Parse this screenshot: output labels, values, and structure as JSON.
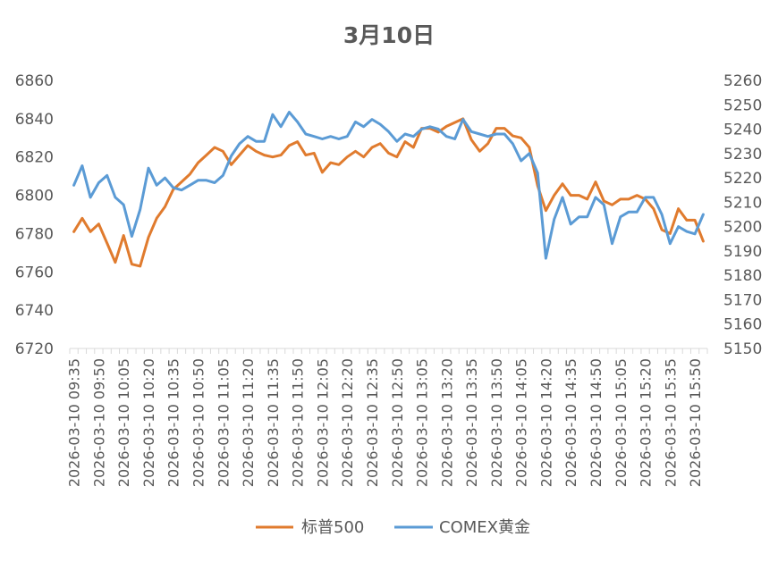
{
  "chart_data": {
    "type": "line",
    "title": "3月10日",
    "x": [
      "2026-03-10 09:35",
      "2026-03-10 09:40",
      "2026-03-10 09:45",
      "2026-03-10 09:50",
      "2026-03-10 09:55",
      "2026-03-10 10:00",
      "2026-03-10 10:05",
      "2026-03-10 10:10",
      "2026-03-10 10:15",
      "2026-03-10 10:20",
      "2026-03-10 10:25",
      "2026-03-10 10:30",
      "2026-03-10 10:35",
      "2026-03-10 10:40",
      "2026-03-10 10:45",
      "2026-03-10 10:50",
      "2026-03-10 10:55",
      "2026-03-10 11:00",
      "2026-03-10 11:05",
      "2026-03-10 11:10",
      "2026-03-10 11:15",
      "2026-03-10 11:20",
      "2026-03-10 11:25",
      "2026-03-10 11:30",
      "2026-03-10 11:35",
      "2026-03-10 11:40",
      "2026-03-10 11:45",
      "2026-03-10 11:50",
      "2026-03-10 11:55",
      "2026-03-10 12:00",
      "2026-03-10 12:05",
      "2026-03-10 12:10",
      "2026-03-10 12:15",
      "2026-03-10 12:20",
      "2026-03-10 12:25",
      "2026-03-10 12:30",
      "2026-03-10 12:35",
      "2026-03-10 12:40",
      "2026-03-10 12:45",
      "2026-03-10 12:50",
      "2026-03-10 12:55",
      "2026-03-10 13:00",
      "2026-03-10 13:05",
      "2026-03-10 13:10",
      "2026-03-10 13:15",
      "2026-03-10 13:20",
      "2026-03-10 13:25",
      "2026-03-10 13:30",
      "2026-03-10 13:35",
      "2026-03-10 13:40",
      "2026-03-10 13:45",
      "2026-03-10 13:50",
      "2026-03-10 13:55",
      "2026-03-10 14:00",
      "2026-03-10 14:05",
      "2026-03-10 14:10",
      "2026-03-10 14:15",
      "2026-03-10 14:20",
      "2026-03-10 14:25",
      "2026-03-10 14:30",
      "2026-03-10 14:35",
      "2026-03-10 14:40",
      "2026-03-10 14:45",
      "2026-03-10 14:50",
      "2026-03-10 14:55",
      "2026-03-10 15:00",
      "2026-03-10 15:05",
      "2026-03-10 15:10",
      "2026-03-10 15:15",
      "2026-03-10 15:20",
      "2026-03-10 15:25",
      "2026-03-10 15:30",
      "2026-03-10 15:35",
      "2026-03-10 15:40",
      "2026-03-10 15:45",
      "2026-03-10 15:50",
      "2026-03-10 15:55"
    ],
    "x_tick_labels": [
      "2026-03-10 09:35",
      "2026-03-10 09:50",
      "2026-03-10 10:05",
      "2026-03-10 10:20",
      "2026-03-10 10:35",
      "2026-03-10 10:50",
      "2026-03-10 11:05",
      "2026-03-10 11:20",
      "2026-03-10 11:35",
      "2026-03-10 11:50",
      "2026-03-10 12:05",
      "2026-03-10 12:20",
      "2026-03-10 12:35",
      "2026-03-10 12:50",
      "2026-03-10 13:05",
      "2026-03-10 13:20",
      "2026-03-10 13:35",
      "2026-03-10 13:50",
      "2026-03-10 14:05",
      "2026-03-10 14:20",
      "2026-03-10 14:35",
      "2026-03-10 14:50",
      "2026-03-10 15:05",
      "2026-03-10 15:20",
      "2026-03-10 15:35",
      "2026-03-10 15:50"
    ],
    "y_left": {
      "ylim": [
        6720,
        6860
      ],
      "ticks": [
        6720,
        6740,
        6760,
        6780,
        6800,
        6820,
        6840,
        6860
      ]
    },
    "y_right": {
      "ylim": [
        5150,
        5260
      ],
      "ticks": [
        5150,
        5160,
        5170,
        5180,
        5190,
        5200,
        5210,
        5220,
        5230,
        5240,
        5250,
        5260
      ]
    },
    "grid": false,
    "legend_position": "bottom",
    "series": [
      {
        "name": "标普500",
        "axis": "left",
        "color": "#E07B2E",
        "values": [
          6781,
          6788,
          6781,
          6785,
          6775,
          6765,
          6779,
          6764,
          6763,
          6778,
          6788,
          6794,
          6803,
          6807,
          6811,
          6817,
          6821,
          6825,
          6823,
          6816,
          6821,
          6826,
          6823,
          6821,
          6820,
          6821,
          6826,
          6828,
          6821,
          6822,
          6812,
          6817,
          6816,
          6820,
          6823,
          6820,
          6825,
          6827,
          6822,
          6820,
          6828,
          6825,
          6835,
          6835,
          6833,
          6836,
          6838,
          6840,
          6829,
          6823,
          6827,
          6835,
          6835,
          6831,
          6830,
          6825,
          6805,
          6792,
          6800,
          6806,
          6800,
          6800,
          6798,
          6807,
          6797,
          6795,
          6798,
          6798,
          6800,
          6798,
          6793,
          6782,
          6780,
          6793,
          6787,
          6787,
          6776
        ]
      },
      {
        "name": "COMEX黄金",
        "axis": "right",
        "color": "#5B9BD5",
        "values": [
          5217,
          5225,
          5212,
          5218,
          5221,
          5212,
          5209,
          5196,
          5207,
          5224,
          5217,
          5220,
          5216,
          5215,
          5217,
          5219,
          5219,
          5218,
          5221,
          5229,
          5234,
          5237,
          5235,
          5235,
          5246,
          5241,
          5247,
          5243,
          5238,
          5237,
          5236,
          5237,
          5236,
          5237,
          5243,
          5241,
          5244,
          5242,
          5239,
          5235,
          5238,
          5237,
          5240,
          5241,
          5240,
          5237,
          5236,
          5244,
          5239,
          5238,
          5237,
          5238,
          5238,
          5234,
          5227,
          5230,
          5222,
          5187,
          5203,
          5212,
          5201,
          5204,
          5204,
          5212,
          5209,
          5193,
          5204,
          5206,
          5206,
          5212,
          5212,
          5205,
          5193,
          5200,
          5198,
          5197,
          5205
        ]
      }
    ]
  }
}
